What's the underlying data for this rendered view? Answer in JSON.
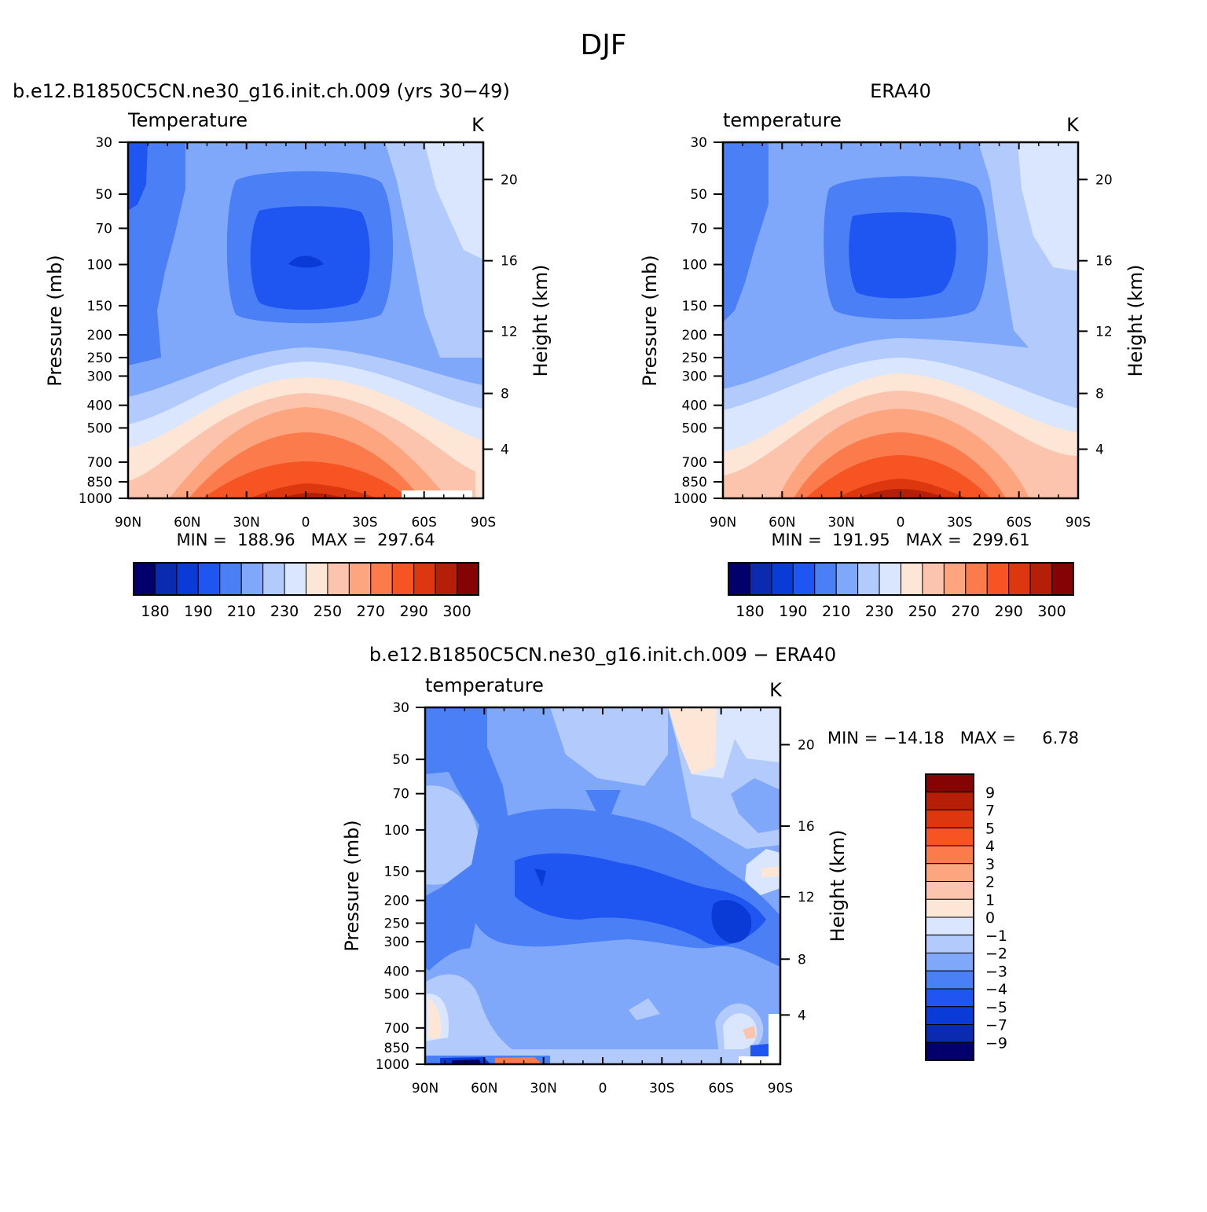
{
  "figure": {
    "title": "DJF"
  },
  "colorbars": {
    "abs_labels": [
      "180",
      "190",
      "210",
      "230",
      "250",
      "270",
      "290",
      "300"
    ],
    "diff_labels": [
      "9",
      "7",
      "5",
      "4",
      "3",
      "2",
      "1",
      "0",
      "−1",
      "−2",
      "−3",
      "−4",
      "−5",
      "−7",
      "−9"
    ],
    "abs_colors": [
      "#03006e",
      "#0a2bb0",
      "#0a3bd6",
      "#1f55f0",
      "#4a7ff5",
      "#80a8fa",
      "#b3cbfc",
      "#d9e6fd",
      "#fde6d6",
      "#fcc4ad",
      "#fca57f",
      "#fb7b4c",
      "#f75423",
      "#dd3710",
      "#b61f07",
      "#850303"
    ],
    "diff_colors": [
      "#850303",
      "#b61f07",
      "#dd3710",
      "#f75423",
      "#fb7b4c",
      "#fca57f",
      "#fcc4ad",
      "#fde6d6",
      "#d9e6fd",
      "#b3cbfc",
      "#80a8fa",
      "#4a7ff5",
      "#1f55f0",
      "#0a3bd6",
      "#0a2bb0",
      "#03006e"
    ]
  },
  "chart_data": [
    {
      "type": "heatmap",
      "title": "b.e12.B1850C5CN.ne30_g16.init.ch.009 (yrs 30−49)",
      "left_label": "Temperature",
      "units": "K",
      "ylabel": "Pressure (mb)",
      "y2label": "Height (km)",
      "x_ticks": [
        "90N",
        "60N",
        "30N",
        "0",
        "30S",
        "60S",
        "90S"
      ],
      "y_ticks": [
        "30",
        "50",
        "70",
        "100",
        "150",
        "200",
        "250",
        "300",
        "400",
        "500",
        "700",
        "850",
        "1000"
      ],
      "y2_ticks": [
        "20",
        "16",
        "12",
        "8",
        "4"
      ],
      "stats": "MIN =  188.96   MAX =  297.64",
      "min": 188.96,
      "max": 297.64,
      "contour_levels": [
        180,
        185,
        190,
        200,
        210,
        220,
        230,
        240,
        250,
        260,
        270,
        280,
        285,
        290,
        295,
        300
      ]
    },
    {
      "type": "heatmap",
      "title": "ERA40",
      "left_label": "temperature",
      "units": "K",
      "ylabel": "Pressure (mb)",
      "y2label": "Height (km)",
      "x_ticks": [
        "90N",
        "60N",
        "30N",
        "0",
        "30S",
        "60S",
        "90S"
      ],
      "y_ticks": [
        "30",
        "50",
        "70",
        "100",
        "150",
        "200",
        "250",
        "300",
        "400",
        "500",
        "700",
        "850",
        "1000"
      ],
      "y2_ticks": [
        "20",
        "16",
        "12",
        "8",
        "4"
      ],
      "stats": "MIN =  191.95   MAX =  299.61",
      "min": 191.95,
      "max": 299.61,
      "contour_levels": [
        180,
        185,
        190,
        200,
        210,
        220,
        230,
        240,
        250,
        260,
        270,
        280,
        285,
        290,
        295,
        300
      ]
    },
    {
      "type": "heatmap",
      "title": "b.e12.B1850C5CN.ne30_g16.init.ch.009 − ERA40",
      "left_label": "temperature",
      "units": "K",
      "ylabel": "Pressure (mb)",
      "y2label": "Height (km)",
      "x_ticks": [
        "90N",
        "60N",
        "30N",
        "0",
        "30S",
        "60S",
        "90S"
      ],
      "y_ticks": [
        "30",
        "50",
        "70",
        "100",
        "150",
        "200",
        "250",
        "300",
        "400",
        "500",
        "700",
        "850",
        "1000"
      ],
      "y2_ticks": [
        "20",
        "16",
        "12",
        "8",
        "4"
      ],
      "stats": "MIN = −14.18   MAX =     6.78",
      "min": -14.18,
      "max": 6.78,
      "contour_levels": [
        -9,
        -7,
        -5,
        -4,
        -3,
        -2,
        -1,
        0,
        1,
        2,
        3,
        4,
        5,
        7,
        9
      ]
    }
  ]
}
